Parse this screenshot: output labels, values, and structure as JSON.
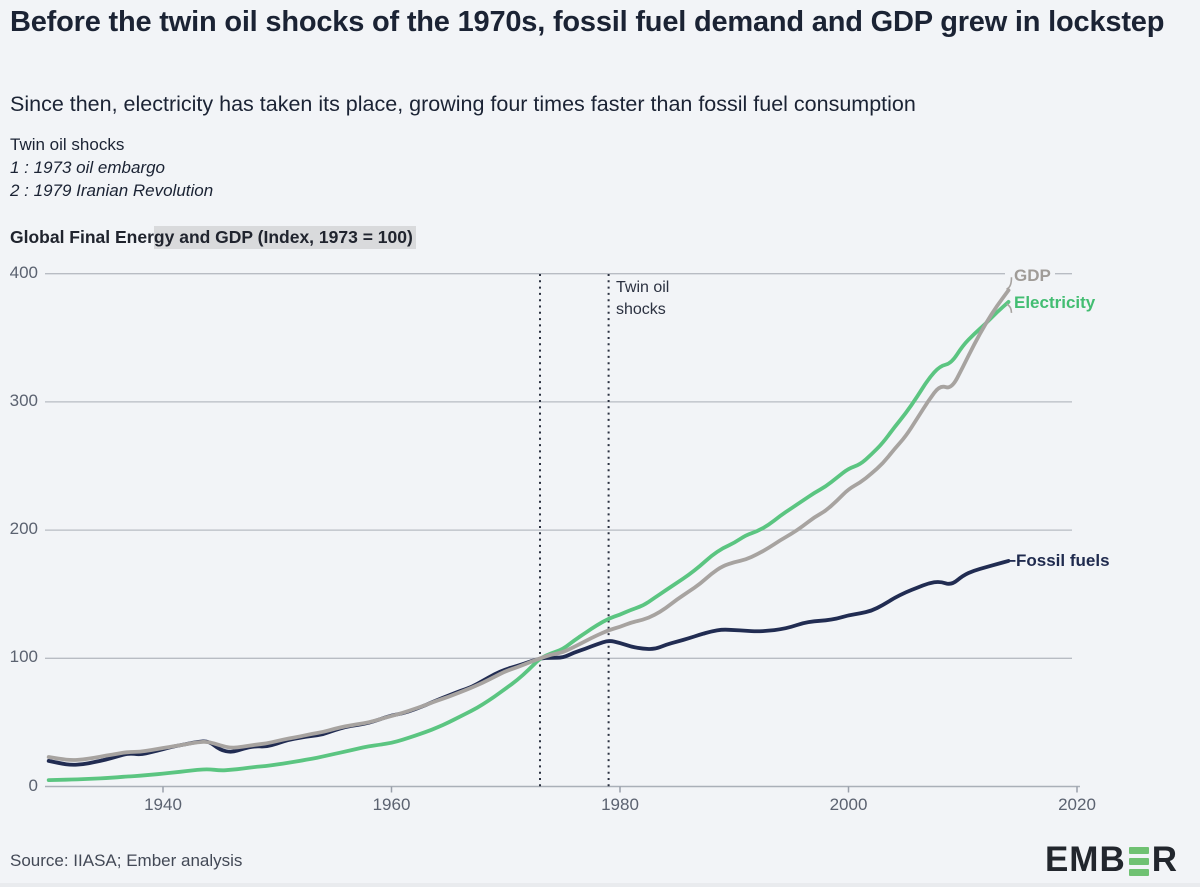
{
  "header": {
    "title": "Before the twin oil shocks of the 1970s, fossil fuel demand and GDP grew in lockstep",
    "subtitle": "Since then, electricity has taken its place, growing four times faster than fossil fuel consumption"
  },
  "note": {
    "heading": "Twin oil shocks",
    "line1": "1 : 1973 oil embargo",
    "line2": "2 : 1979 Iranian Revolution"
  },
  "chart_label": {
    "prefix": "Global Final Ener",
    "highlighted": "gy and GDP (Index, 1973 = 100)"
  },
  "chart_data": {
    "type": "line",
    "title": "Global Final Energy and GDP (Index, 1973 = 100)",
    "xlabel": "",
    "ylabel": "",
    "xlim": [
      1929.5,
      2020.3
    ],
    "ylim": [
      0,
      400
    ],
    "xticks": [
      1940,
      1960,
      1980,
      2000,
      2020
    ],
    "yticks": [
      0,
      100,
      200,
      300,
      400
    ],
    "grid": "horizontal",
    "legend_position": "line-end-labels",
    "vline_annotation": "Twin oil shocks",
    "vlines": [
      {
        "year": 1973,
        "style": "dotted"
      },
      {
        "year": 1979,
        "style": "dotted"
      }
    ],
    "x_years_start": 1930,
    "x_years_end": 2014,
    "series": [
      {
        "name": "GDP",
        "color": "#a7a3a0",
        "label_color": "#a09c98",
        "values": [
          23,
          21.5,
          20.5,
          21,
          22.5,
          24,
          25.5,
          27,
          27,
          28.5,
          30,
          31.5,
          33,
          34.5,
          35,
          32,
          30,
          31,
          32.5,
          33.5,
          35.5,
          37.5,
          39,
          41,
          42.5,
          45,
          47,
          48.5,
          50,
          52.5,
          55,
          57.5,
          60.5,
          63.5,
          67,
          70,
          73.5,
          77,
          81,
          85.5,
          90,
          93,
          96.5,
          100,
          103,
          104.5,
          109,
          113.5,
          118,
          122,
          124.5,
          128,
          130,
          133.5,
          139,
          146,
          152,
          158,
          166,
          172,
          175,
          177,
          181,
          186,
          192,
          197,
          203,
          210,
          215,
          223,
          232,
          237,
          244,
          252,
          263,
          273,
          287,
          301,
          313,
          310,
          327,
          345,
          361,
          375,
          387
        ]
      },
      {
        "name": "Electricity",
        "color": "#5bc581",
        "label_color": "#43bd72",
        "values": [
          5,
          5.2,
          5.4,
          5.7,
          6.1,
          6.6,
          7.2,
          7.9,
          8.4,
          9.2,
          10,
          11,
          12,
          13,
          13.5,
          12.5,
          13,
          14,
          15.2,
          16,
          17.2,
          18.6,
          20,
          21.6,
          23.4,
          25.4,
          27.4,
          29.4,
          31.4,
          32.6,
          34,
          36.5,
          39.5,
          42.5,
          46,
          50,
          54.5,
          59,
          64,
          70,
          76.5,
          83,
          91,
          100,
          104,
          107,
          114,
          120,
          126,
          131,
          134,
          138,
          141,
          147,
          153,
          159,
          165,
          172,
          180,
          186,
          190,
          196,
          199,
          204,
          211,
          217,
          223,
          229,
          234,
          241,
          248,
          251,
          259,
          268,
          280,
          291,
          304,
          318,
          328,
          330,
          344,
          353,
          361,
          370,
          378
        ]
      },
      {
        "name": "Fossil fuels",
        "color": "#212c52",
        "label_color": "#1f2a4e",
        "values": [
          20,
          18,
          16.8,
          17.3,
          19,
          21,
          23.5,
          26,
          24.8,
          26.8,
          29,
          31.5,
          33,
          34.8,
          35.5,
          28.5,
          26.5,
          29.5,
          31.5,
          31,
          33.5,
          36.5,
          38,
          39.5,
          40.5,
          44,
          46.5,
          48,
          49.5,
          52.5,
          55.5,
          57,
          60,
          63.5,
          67.5,
          71,
          74.5,
          77.5,
          82.5,
          87.5,
          91.5,
          94,
          97,
          100,
          100.5,
          100.5,
          104.5,
          107.5,
          111,
          114,
          112,
          109,
          107.5,
          107,
          110.5,
          113,
          115.5,
          118.5,
          121,
          122.5,
          122,
          121.5,
          121,
          121.5,
          122.5,
          124.5,
          127.5,
          129,
          129.5,
          131,
          133.5,
          135,
          137,
          141.5,
          147,
          151.5,
          155,
          158.5,
          160,
          157,
          164.5,
          168.5,
          171,
          173.5,
          176
        ]
      }
    ]
  },
  "footer": {
    "source": "Source: IIASA; Ember analysis",
    "logo_prefix": "EMB",
    "logo_suffix": "R"
  }
}
